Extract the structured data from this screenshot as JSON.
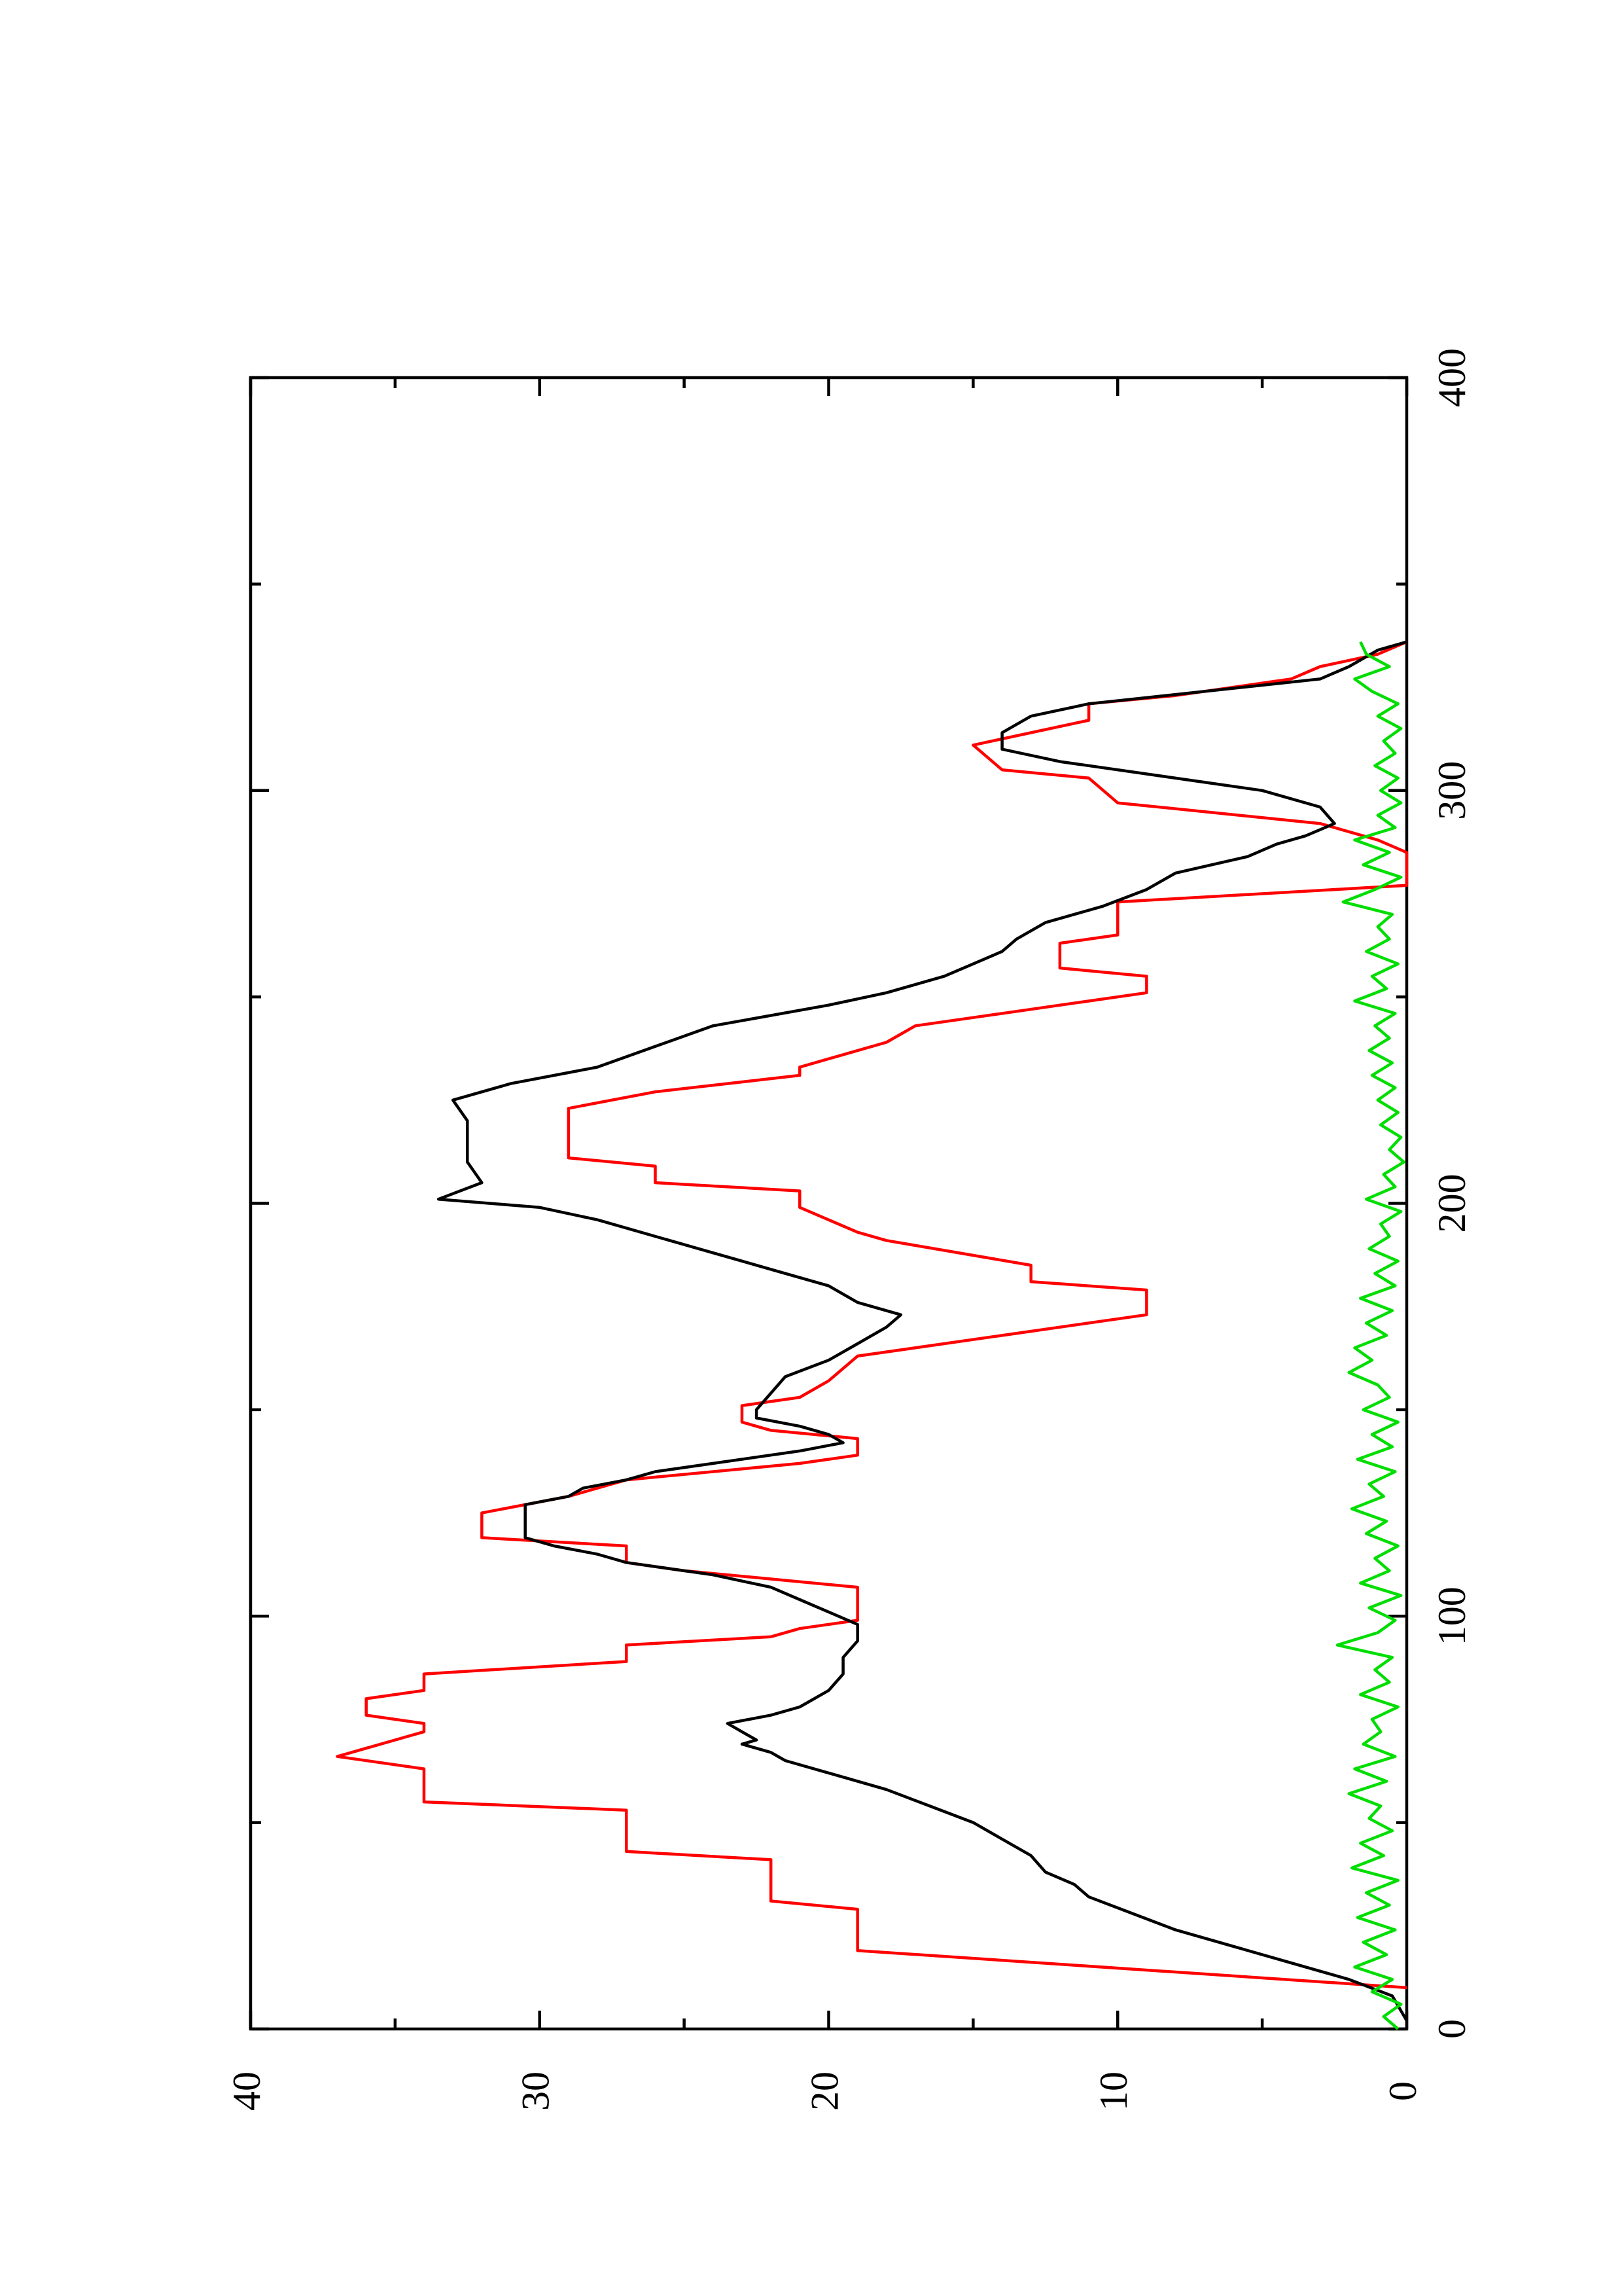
{
  "chart_data": {
    "type": "line",
    "orientation": "rotated-90-ccw",
    "title": "",
    "xlabel": "",
    "ylabel": "",
    "xlim": [
      0,
      400
    ],
    "ylim": [
      0,
      40
    ],
    "x_ticks": [
      0,
      100,
      200,
      300,
      400
    ],
    "y_ticks": [
      0,
      10,
      20,
      30,
      40
    ],
    "x_minor_ticks": [
      50,
      150,
      250,
      350
    ],
    "y_minor_ticks": [
      5,
      15,
      25,
      35
    ],
    "grid": false,
    "legend": "none",
    "series": [
      {
        "color": "#ff0000",
        "style": "step-like",
        "points": [
          [
            10,
            0
          ],
          [
            19,
            19
          ],
          [
            29,
            19
          ],
          [
            31,
            22
          ],
          [
            41,
            22
          ],
          [
            43,
            27
          ],
          [
            53,
            27
          ],
          [
            55,
            34
          ],
          [
            63,
            34
          ],
          [
            66,
            37
          ],
          [
            68,
            36
          ],
          [
            72,
            34
          ],
          [
            74,
            34
          ],
          [
            76,
            36
          ],
          [
            80,
            36
          ],
          [
            82,
            34
          ],
          [
            86,
            34
          ],
          [
            89,
            27
          ],
          [
            93,
            27
          ],
          [
            95,
            22
          ],
          [
            97,
            21
          ],
          [
            99,
            19
          ],
          [
            107,
            19
          ],
          [
            111,
            25
          ],
          [
            113,
            27
          ],
          [
            117,
            27
          ],
          [
            119,
            32
          ],
          [
            125,
            32
          ],
          [
            129,
            29
          ],
          [
            133,
            27
          ],
          [
            137,
            21
          ],
          [
            139,
            19
          ],
          [
            143,
            19
          ],
          [
            145,
            22
          ],
          [
            147,
            23
          ],
          [
            151,
            23
          ],
          [
            153,
            21
          ],
          [
            157,
            20
          ],
          [
            163,
            19
          ],
          [
            173,
            9
          ],
          [
            179,
            9
          ],
          [
            181,
            13
          ],
          [
            185,
            13
          ],
          [
            191,
            18
          ],
          [
            193,
            19
          ],
          [
            199,
            21
          ],
          [
            203,
            21
          ],
          [
            205,
            26
          ],
          [
            209,
            26
          ],
          [
            211,
            29
          ],
          [
            223,
            29
          ],
          [
            227,
            26
          ],
          [
            231,
            21
          ],
          [
            233,
            21
          ],
          [
            239,
            18
          ],
          [
            243,
            17
          ],
          [
            245,
            15
          ],
          [
            251,
            9
          ],
          [
            255,
            9
          ],
          [
            257,
            12
          ],
          [
            263,
            12
          ],
          [
            265,
            10
          ],
          [
            273,
            10
          ],
          [
            277,
            0
          ],
          [
            285,
            0
          ],
          [
            288,
            1
          ],
          [
            292,
            3
          ],
          [
            297,
            10
          ],
          [
            303,
            11
          ],
          [
            305,
            14
          ],
          [
            311,
            15
          ],
          [
            317,
            11
          ],
          [
            321,
            11
          ],
          [
            323,
            8
          ],
          [
            327,
            4
          ],
          [
            330,
            3
          ],
          [
            333,
            1
          ],
          [
            336,
            0
          ]
        ]
      },
      {
        "color": "#000000",
        "style": "smooth",
        "points": [
          [
            2,
            0
          ],
          [
            8,
            0.5
          ],
          [
            12,
            2
          ],
          [
            16,
            4
          ],
          [
            20,
            6
          ],
          [
            24,
            8
          ],
          [
            28,
            9.5
          ],
          [
            32,
            11
          ],
          [
            35,
            11.5
          ],
          [
            38,
            12.5
          ],
          [
            42,
            13
          ],
          [
            46,
            14
          ],
          [
            50,
            15
          ],
          [
            54,
            16.5
          ],
          [
            58,
            18
          ],
          [
            62,
            20
          ],
          [
            65,
            21.5
          ],
          [
            67,
            22
          ],
          [
            69,
            23
          ],
          [
            70,
            22.5
          ],
          [
            72,
            23
          ],
          [
            74,
            23.5
          ],
          [
            76,
            22
          ],
          [
            78,
            21
          ],
          [
            82,
            20
          ],
          [
            86,
            19.5
          ],
          [
            90,
            19.5
          ],
          [
            94,
            19
          ],
          [
            96,
            19
          ],
          [
            98,
            19
          ],
          [
            101,
            20
          ],
          [
            104,
            21
          ],
          [
            107,
            22
          ],
          [
            110,
            24
          ],
          [
            113,
            27
          ],
          [
            115,
            28
          ],
          [
            117,
            29.5
          ],
          [
            119,
            30.5
          ],
          [
            127,
            30.5
          ],
          [
            129,
            29
          ],
          [
            131,
            28.5
          ],
          [
            133,
            27
          ],
          [
            135,
            26
          ],
          [
            137,
            24
          ],
          [
            140,
            21
          ],
          [
            142,
            19.5
          ],
          [
            144,
            20
          ],
          [
            146,
            21
          ],
          [
            148,
            22.5
          ],
          [
            150,
            22.5
          ],
          [
            154,
            22
          ],
          [
            158,
            21.5
          ],
          [
            162,
            20
          ],
          [
            166,
            19
          ],
          [
            170,
            18
          ],
          [
            173,
            17.5
          ],
          [
            176,
            19
          ],
          [
            180,
            20
          ],
          [
            184,
            22
          ],
          [
            188,
            24
          ],
          [
            192,
            26
          ],
          [
            196,
            28
          ],
          [
            199,
            30
          ],
          [
            201,
            33.5
          ],
          [
            205,
            32
          ],
          [
            210,
            32.5
          ],
          [
            220,
            32.5
          ],
          [
            225,
            33
          ],
          [
            229,
            31
          ],
          [
            233,
            28
          ],
          [
            238,
            26
          ],
          [
            243,
            24
          ],
          [
            248,
            20
          ],
          [
            251,
            18
          ],
          [
            253,
            17
          ],
          [
            255,
            16
          ],
          [
            258,
            15
          ],
          [
            261,
            14
          ],
          [
            264,
            13.5
          ],
          [
            268,
            12.5
          ],
          [
            272,
            10.5
          ],
          [
            276,
            9
          ],
          [
            280,
            8
          ],
          [
            284,
            5.5
          ],
          [
            287,
            4.5
          ],
          [
            289,
            3.5
          ],
          [
            292,
            2.5
          ],
          [
            296,
            3
          ],
          [
            300,
            5
          ],
          [
            304,
            9
          ],
          [
            307,
            12
          ],
          [
            310,
            14
          ],
          [
            314,
            14
          ],
          [
            318,
            13
          ],
          [
            321,
            11
          ],
          [
            324,
            7
          ],
          [
            327,
            3
          ],
          [
            330,
            2
          ],
          [
            334,
            1
          ],
          [
            336,
            0
          ]
        ]
      },
      {
        "color": "#00dd00",
        "style": "noisy",
        "points": [
          [
            0,
            0.3
          ],
          [
            3,
            0.8
          ],
          [
            6,
            0.2
          ],
          [
            9,
            1.2
          ],
          [
            12,
            0.5
          ],
          [
            15,
            1.8
          ],
          [
            18,
            0.7
          ],
          [
            21,
            1.5
          ],
          [
            24,
            0.4
          ],
          [
            27,
            1.7
          ],
          [
            30,
            0.6
          ],
          [
            33,
            1.4
          ],
          [
            36,
            0.3
          ],
          [
            39,
            1.9
          ],
          [
            42,
            0.8
          ],
          [
            45,
            1.6
          ],
          [
            48,
            0.5
          ],
          [
            51,
            1.3
          ],
          [
            54,
            0.9
          ],
          [
            57,
            2.0
          ],
          [
            60,
            0.7
          ],
          [
            63,
            1.8
          ],
          [
            66,
            0.4
          ],
          [
            69,
            1.5
          ],
          [
            72,
            0.9
          ],
          [
            75,
            1.2
          ],
          [
            78,
            0.3
          ],
          [
            81,
            1.6
          ],
          [
            84,
            0.6
          ],
          [
            87,
            1.1
          ],
          [
            90,
            0.5
          ],
          [
            93,
            2.4
          ],
          [
            96,
            1.0
          ],
          [
            99,
            0.4
          ],
          [
            102,
            1.3
          ],
          [
            105,
            0.2
          ],
          [
            108,
            1.6
          ],
          [
            111,
            0.6
          ],
          [
            114,
            1.1
          ],
          [
            117,
            0.3
          ],
          [
            120,
            1.4
          ],
          [
            123,
            0.7
          ],
          [
            126,
            1.9
          ],
          [
            129,
            0.8
          ],
          [
            132,
            1.3
          ],
          [
            135,
            0.4
          ],
          [
            138,
            1.7
          ],
          [
            141,
            0.5
          ],
          [
            144,
            1.2
          ],
          [
            147,
            0.3
          ],
          [
            150,
            1.5
          ],
          [
            153,
            0.6
          ],
          [
            156,
            1.0
          ],
          [
            159,
            2.0
          ],
          [
            162,
            1.2
          ],
          [
            165,
            1.8
          ],
          [
            168,
            0.7
          ],
          [
            171,
            1.4
          ],
          [
            174,
            0.5
          ],
          [
            177,
            1.6
          ],
          [
            180,
            0.4
          ],
          [
            183,
            1.1
          ],
          [
            186,
            0.3
          ],
          [
            189,
            1.3
          ],
          [
            192,
            0.6
          ],
          [
            195,
            0.9
          ],
          [
            198,
            0.2
          ],
          [
            201,
            1.4
          ],
          [
            204,
            0.4
          ],
          [
            207,
            0.8
          ],
          [
            210,
            0.1
          ],
          [
            213,
            0.6
          ],
          [
            216,
            0.2
          ],
          [
            219,
            0.9
          ],
          [
            222,
            0.3
          ],
          [
            225,
            1.0
          ],
          [
            228,
            0.4
          ],
          [
            231,
            1.2
          ],
          [
            234,
            0.5
          ],
          [
            237,
            1.3
          ],
          [
            240,
            0.6
          ],
          [
            243,
            1.1
          ],
          [
            246,
            0.4
          ],
          [
            249,
            1.8
          ],
          [
            252,
            0.7
          ],
          [
            255,
            1.2
          ],
          [
            258,
            0.3
          ],
          [
            261,
            1.4
          ],
          [
            264,
            0.6
          ],
          [
            267,
            1.0
          ],
          [
            270,
            0.5
          ],
          [
            273,
            2.2
          ],
          [
            276,
            1.1
          ],
          [
            279,
            0.2
          ],
          [
            282,
            1.5
          ],
          [
            285,
            0.6
          ],
          [
            288,
            1.8
          ],
          [
            291,
            0.4
          ],
          [
            294,
            1.0
          ],
          [
            297,
            0.2
          ],
          [
            300,
            0.9
          ],
          [
            303,
            0.3
          ],
          [
            306,
            1.1
          ],
          [
            309,
            0.4
          ],
          [
            312,
            0.8
          ],
          [
            315,
            0.2
          ],
          [
            318,
            1.0
          ],
          [
            321,
            0.3
          ],
          [
            324,
            1.2
          ],
          [
            327,
            1.8
          ],
          [
            330,
            0.6
          ],
          [
            333,
            1.4
          ],
          [
            336,
            1.6
          ]
        ]
      }
    ]
  }
}
